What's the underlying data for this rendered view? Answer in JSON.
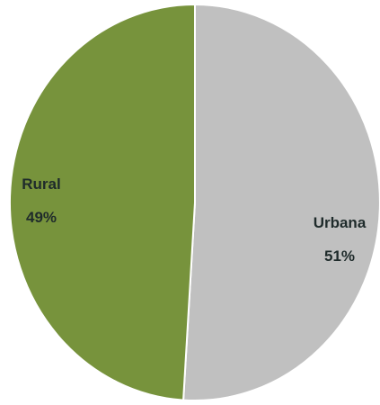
{
  "chart_data": {
    "type": "pie",
    "slices": [
      {
        "name": "Urbana",
        "value": 51,
        "label": "51%",
        "color": "#c0c0c0"
      },
      {
        "name": "Rural",
        "value": 49,
        "label": "49%",
        "color": "#77933c"
      }
    ],
    "start": "top",
    "direction": "clockwise"
  }
}
